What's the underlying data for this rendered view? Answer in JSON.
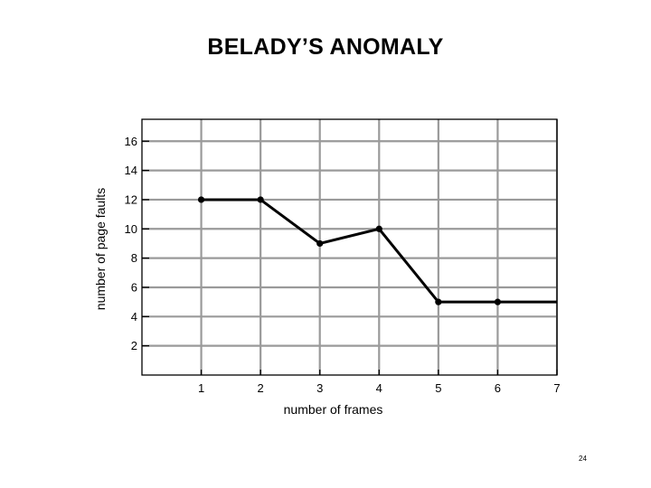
{
  "slide": {
    "title": "BELADY’S ANOMALY",
    "page_number": "24"
  },
  "colors": {
    "grid": "#9a9a9a",
    "frame": "#000000",
    "line": "#000000",
    "text": "#000000",
    "background": "#ffffff"
  },
  "chart_data": {
    "type": "line",
    "title": "",
    "xlabel": "number of frames",
    "ylabel": "number of page faults",
    "x_ticks": [
      "1",
      "2",
      "3",
      "4",
      "5",
      "6",
      "7"
    ],
    "y_ticks": [
      "2",
      "4",
      "6",
      "8",
      "10",
      "12",
      "14",
      "16"
    ],
    "xlim": [
      0,
      7
    ],
    "ylim": [
      0,
      17.5
    ],
    "grid": true,
    "legend": "none",
    "series": [
      {
        "x": [
          1,
          2,
          3,
          4,
          5,
          6,
          7
        ],
        "y": [
          12,
          12,
          9,
          10,
          5,
          5,
          5
        ],
        "markers": [
          true,
          true,
          true,
          true,
          true,
          true,
          false
        ]
      }
    ]
  }
}
